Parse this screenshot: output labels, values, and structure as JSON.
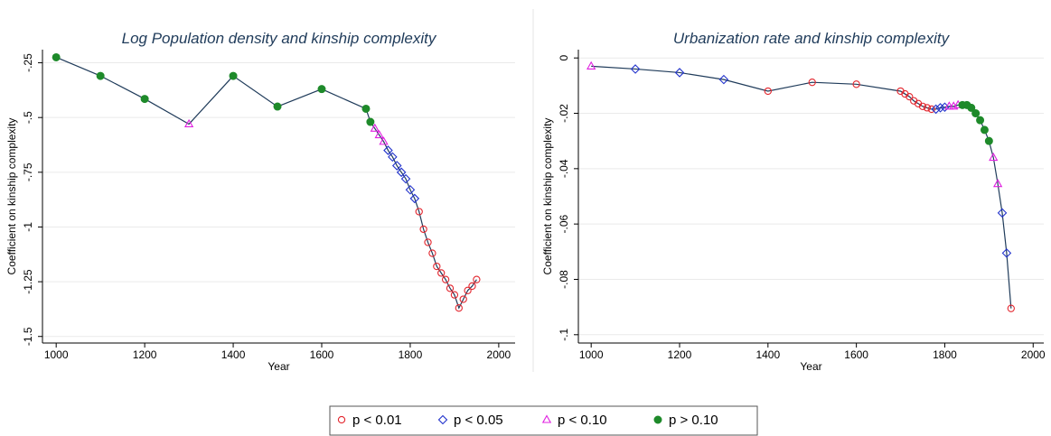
{
  "chart_data": [
    {
      "type": "line",
      "title": "Log Population density and kinship complexity",
      "xlabel": "Year",
      "ylabel": "Coefficient on kinship complexity",
      "x": [
        1000,
        1100,
        1200,
        1300,
        1400,
        1500,
        1600,
        1700,
        1710,
        1720,
        1730,
        1740,
        1750,
        1760,
        1770,
        1780,
        1790,
        1800,
        1810,
        1820,
        1830,
        1840,
        1850,
        1860,
        1870,
        1880,
        1890,
        1900,
        1910,
        1920,
        1930,
        1940,
        1950
      ],
      "values": [
        -0.225,
        -0.31,
        -0.415,
        -0.53,
        -0.31,
        -0.45,
        -0.37,
        -0.46,
        -0.52,
        -0.55,
        -0.58,
        -0.61,
        -0.65,
        -0.68,
        -0.72,
        -0.75,
        -0.78,
        -0.83,
        -0.87,
        -0.93,
        -1.01,
        -1.07,
        -1.12,
        -1.18,
        -1.21,
        -1.24,
        -1.28,
        -1.31,
        -1.37,
        -1.33,
        -1.29,
        -1.27,
        -1.24
      ],
      "marker_group": [
        3,
        3,
        3,
        2,
        3,
        3,
        3,
        3,
        3,
        2,
        2,
        2,
        1,
        1,
        1,
        1,
        1,
        1,
        1,
        0,
        0,
        0,
        0,
        0,
        0,
        0,
        0,
        0,
        0,
        0,
        0,
        0,
        0
      ],
      "line_color": "#1f3b5a",
      "xlim": [
        969,
        2037
      ],
      "xticks": [
        1000,
        1200,
        1400,
        1600,
        1800,
        2000
      ],
      "ylim": [
        -1.53,
        -0.19
      ],
      "yticks": [
        {
          "value": -0.25,
          "label": "-.25"
        },
        {
          "value": -0.5,
          "label": "-.5"
        },
        {
          "value": -0.75,
          "label": "-.75"
        },
        -1,
        {
          "value": -1.25,
          "label": "-1.25"
        },
        {
          "value": -1.5,
          "label": "-1.5"
        }
      ],
      "grid": true
    },
    {
      "type": "line",
      "title": "Urbanization rate and kinship complexity",
      "xlabel": "Year",
      "ylabel": "Coefficient on kinship complexity",
      "x": [
        1000,
        1100,
        1200,
        1300,
        1400,
        1500,
        1600,
        1700,
        1710,
        1720,
        1730,
        1740,
        1750,
        1760,
        1770,
        1780,
        1790,
        1800,
        1810,
        1820,
        1830,
        1840,
        1850,
        1860,
        1870,
        1880,
        1890,
        1900,
        1910,
        1920,
        1930,
        1940,
        1950
      ],
      "values": [
        -0.003,
        -0.004,
        -0.0053,
        -0.0078,
        -0.012,
        -0.0088,
        -0.0095,
        -0.012,
        -0.013,
        -0.014,
        -0.0155,
        -0.0165,
        -0.0175,
        -0.018,
        -0.0185,
        -0.0185,
        -0.018,
        -0.0178,
        -0.0175,
        -0.0175,
        -0.017,
        -0.017,
        -0.017,
        -0.018,
        -0.02,
        -0.0225,
        -0.026,
        -0.03,
        -0.036,
        -0.0455,
        -0.056,
        -0.0705,
        -0.0905
      ],
      "marker_group": [
        2,
        1,
        1,
        1,
        0,
        0,
        0,
        0,
        0,
        0,
        0,
        0,
        0,
        0,
        0,
        1,
        1,
        1,
        2,
        2,
        2,
        3,
        3,
        3,
        3,
        3,
        3,
        3,
        2,
        2,
        1,
        1,
        0
      ],
      "line_color": "#1f3b5a",
      "xlim": [
        971,
        2024
      ],
      "xticks": [
        1000,
        1200,
        1400,
        1600,
        1800,
        2000
      ],
      "ylim": [
        -0.103,
        0.003
      ],
      "yticks": [
        0,
        {
          "value": -0.02,
          "label": "-.02"
        },
        {
          "value": -0.04,
          "label": "-.04"
        },
        {
          "value": -0.06,
          "label": "-.06"
        },
        {
          "value": -0.08,
          "label": "-.08"
        },
        {
          "value": -0.1,
          "label": "-.1"
        }
      ],
      "grid": true
    }
  ],
  "legend": [
    {
      "label": "p < 0.01",
      "color": "#e3262e",
      "shape": "circle"
    },
    {
      "label": "p < 0.05",
      "color": "#2233cc",
      "shape": "diamond"
    },
    {
      "label": "p < 0.10",
      "color": "#e020e0",
      "shape": "triangle"
    },
    {
      "label": "p > 0.10",
      "color": "#1e8a2a",
      "shape": "dot"
    }
  ]
}
